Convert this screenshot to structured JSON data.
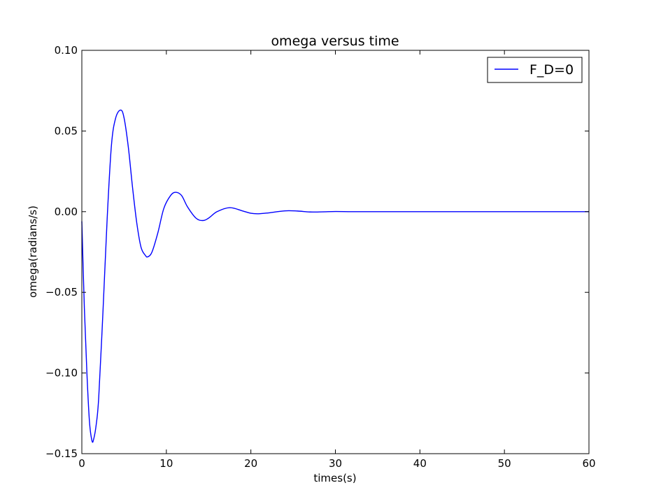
{
  "chart_data": {
    "type": "line",
    "title": "omega versus time",
    "xlabel": "times(s)",
    "ylabel": "omega(radians/s)",
    "xlim": [
      0,
      60
    ],
    "ylim": [
      -0.15,
      0.1
    ],
    "grid": false,
    "legend_placement": "top-right",
    "x_ticks": [
      0,
      10,
      20,
      30,
      40,
      50,
      60
    ],
    "x_tick_labels": [
      "0",
      "10",
      "20",
      "30",
      "40",
      "50",
      "60"
    ],
    "y_ticks": [
      -0.15,
      -0.1,
      -0.05,
      0.0,
      0.05,
      0.1
    ],
    "y_tick_labels": [
      "−0.15",
      "−0.10",
      "−0.05",
      "0.00",
      "0.05",
      "0.10"
    ],
    "series": [
      {
        "name": "F_D=0",
        "color": "#0000ff",
        "x": [
          0,
          0.3,
          0.6,
          0.9,
          1.2,
          1.4,
          1.7,
          2.0,
          2.5,
          3.0,
          3.5,
          4.0,
          4.6,
          5.0,
          5.5,
          6.0,
          6.5,
          7.0,
          7.5,
          7.8,
          8.3,
          9.0,
          9.7,
          10.5,
          11.1,
          11.8,
          12.5,
          13.5,
          14.3,
          15.0,
          16.0,
          17.5,
          19.0,
          20.0,
          20.9,
          22.0,
          24.0,
          25.5,
          27.0,
          28.5,
          30.0,
          32.0,
          35.0,
          40.0,
          45.0,
          50.0,
          55.0,
          60.0
        ],
        "y": [
          -0.006,
          -0.06,
          -0.1,
          -0.13,
          -0.142,
          -0.141,
          -0.132,
          -0.115,
          -0.062,
          -0.004,
          0.041,
          0.058,
          0.063,
          0.058,
          0.04,
          0.015,
          -0.007,
          -0.022,
          -0.027,
          -0.028,
          -0.025,
          -0.013,
          0.002,
          0.01,
          0.012,
          0.01,
          0.003,
          -0.004,
          -0.0055,
          -0.004,
          0.0,
          0.0025,
          0.0005,
          -0.001,
          -0.0013,
          -0.0008,
          0.0005,
          0.0004,
          -0.0002,
          -0.0001,
          0.0001,
          0.0,
          0.0,
          0.0,
          0.0,
          0.0,
          0.0,
          0.0
        ]
      }
    ]
  }
}
